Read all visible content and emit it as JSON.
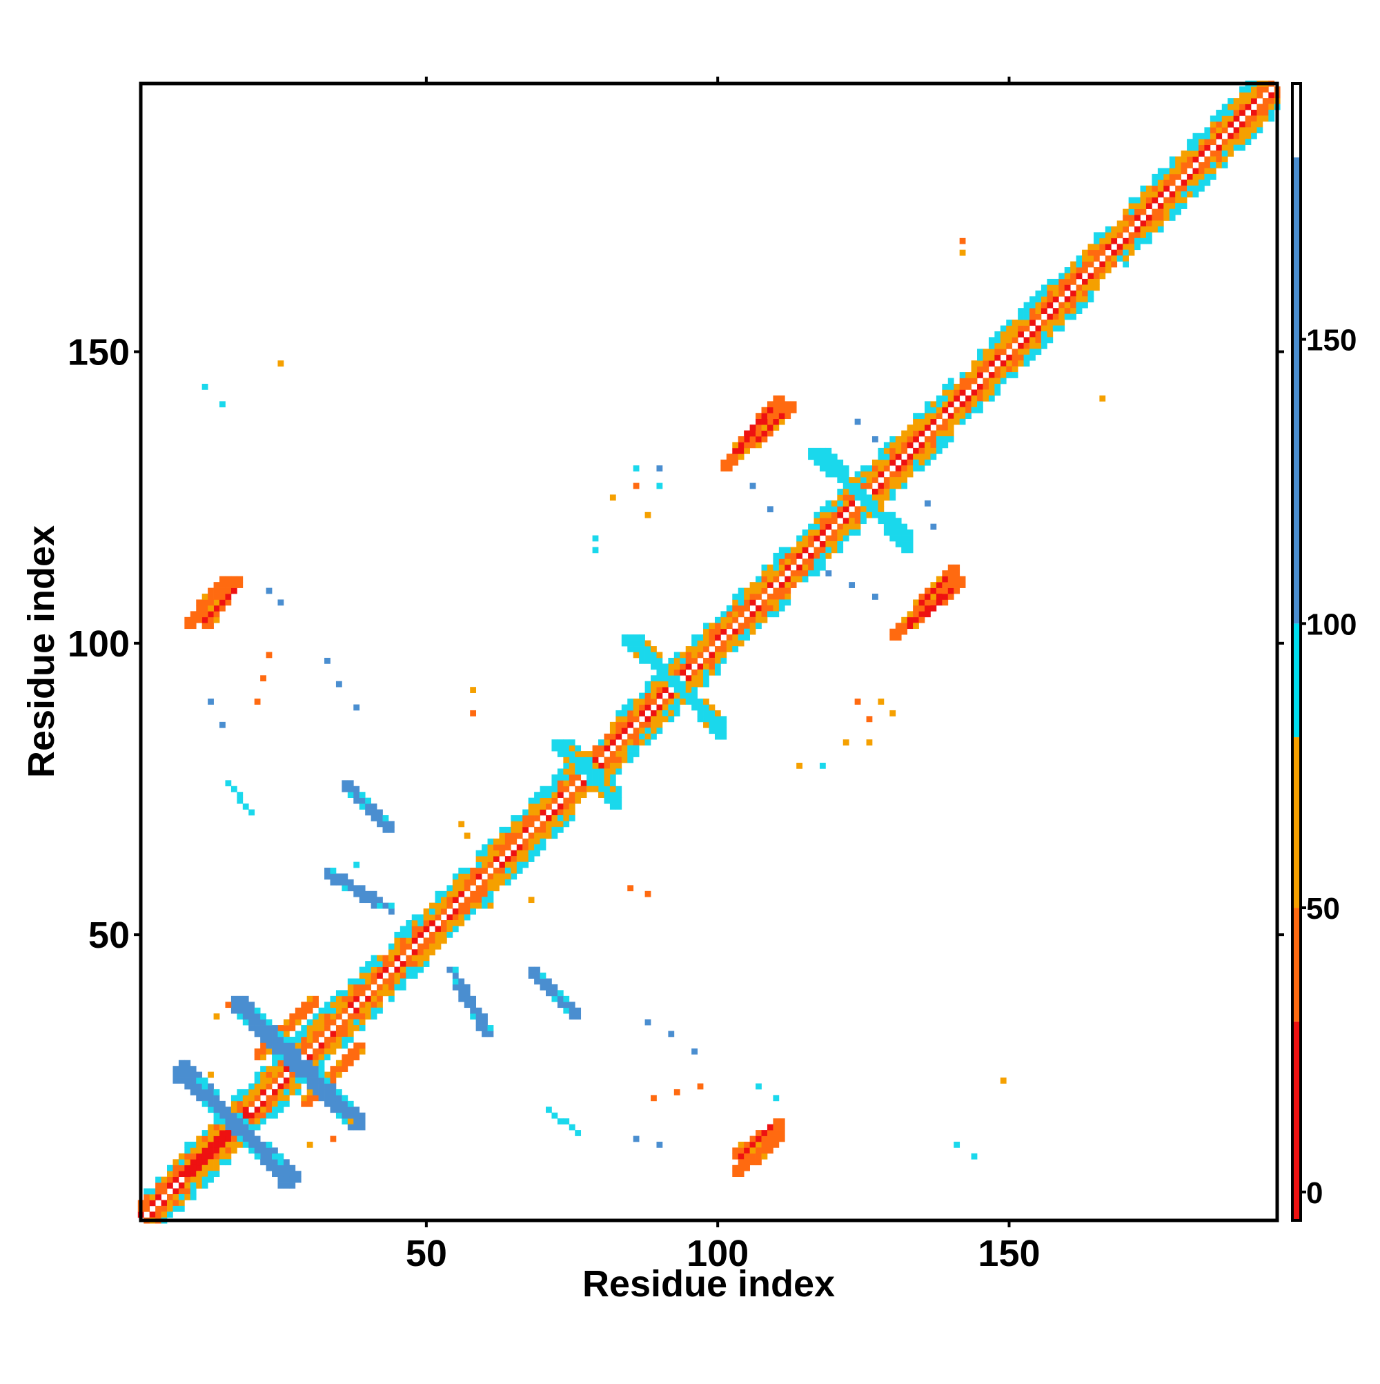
{
  "chart_data": {
    "type": "heatmap",
    "title": "",
    "xlabel": "Residue index",
    "ylabel": "Residue index",
    "xlim": [
      1,
      196
    ],
    "ylim": [
      1,
      196
    ],
    "x_ticks": [
      50,
      100,
      150
    ],
    "y_ticks": [
      50,
      100,
      150
    ],
    "grid": false,
    "colorbar": {
      "position": "right",
      "range": [
        -5,
        195
      ],
      "ticks": [
        0,
        50,
        100,
        150
      ],
      "bands": [
        {
          "from": -5,
          "to": 30,
          "color": "#ee1111"
        },
        {
          "from": 30,
          "to": 50,
          "color": "#ff6a10"
        },
        {
          "from": 50,
          "to": 80,
          "color": "#f5a000"
        },
        {
          "from": 80,
          "to": 100,
          "color": "#00e0f0"
        },
        {
          "from": 100,
          "to": 182,
          "color": "#4a8ed0"
        },
        {
          "from": 182,
          "to": 195,
          "color": "#ffffff"
        }
      ]
    },
    "palette": {
      "red": "#ee1111",
      "orange_red": "#ff6a10",
      "orange": "#f5a000",
      "cyan": "#1ad8ec",
      "steel_blue": "#4a8ed0"
    },
    "diagonal": {
      "from": 1,
      "to": 196,
      "helix_core_segments": [
        [
          7,
          18
        ],
        [
          20,
          42
        ],
        [
          44,
          56
        ],
        [
          59,
          75
        ],
        [
          82,
          100
        ],
        [
          103,
          112
        ],
        [
          117,
          140
        ],
        [
          144,
          165
        ],
        [
          170,
          196
        ]
      ]
    },
    "patches": [
      {
        "x": [
          10,
          18
        ],
        "y": [
          10,
          18
        ],
        "offset": 0,
        "width": 1.2,
        "color": "red"
      },
      {
        "x": [
          22,
          30
        ],
        "y": [
          30,
          38
        ],
        "offset": 0,
        "width": 1.2,
        "color": "orange_red"
      },
      {
        "x": [
          9,
          18
        ],
        "y": [
          16,
          27
        ],
        "anti": true,
        "width": 2.2,
        "color": "steel_blue"
      },
      {
        "x": [
          18,
          26
        ],
        "y": [
          8,
          17
        ],
        "anti": true,
        "width": 2.2,
        "color": "steel_blue"
      },
      {
        "x": [
          18,
          27
        ],
        "y": [
          28,
          38
        ],
        "anti": true,
        "width": 2.0,
        "color": "steel_blue"
      },
      {
        "x": [
          29,
          38
        ],
        "y": [
          18,
          27
        ],
        "anti": true,
        "width": 2.0,
        "color": "steel_blue"
      },
      {
        "x": [
          13,
          17
        ],
        "y": [
          104,
          110
        ],
        "offset": 0,
        "width": 1.6,
        "color": "orange_red"
      },
      {
        "x": [
          13,
          16
        ],
        "y": [
          105,
          108
        ],
        "offset": 0,
        "width": 0.8,
        "color": "red"
      },
      {
        "x": [
          37,
          41
        ],
        "y": [
          71,
          75
        ],
        "anti": true,
        "width": 1.4,
        "color": "steel_blue"
      },
      {
        "x": [
          34,
          41
        ],
        "y": [
          56,
          60
        ],
        "anti": true,
        "width": 1.2,
        "color": "steel_blue"
      },
      {
        "x": [
          55,
          58
        ],
        "y": [
          38,
          43
        ],
        "anti": true,
        "width": 1.0,
        "color": "steel_blue"
      },
      {
        "x": [
          69,
          74
        ],
        "y": [
          38,
          43
        ],
        "anti": true,
        "width": 1.2,
        "color": "steel_blue"
      },
      {
        "x": [
          75,
          82
        ],
        "y": [
          73,
          82
        ],
        "anti": true,
        "width": 2.2,
        "color": "cyan"
      },
      {
        "x": [
          87,
          100
        ],
        "y": [
          85,
          100
        ],
        "anti": true,
        "width": 1.6,
        "color": "cyan"
      },
      {
        "x": [
          119,
          132
        ],
        "y": [
          117,
          132
        ],
        "anti": true,
        "width": 1.6,
        "color": "cyan"
      },
      {
        "x": [
          102,
          112
        ],
        "y": [
          131,
          140
        ],
        "offset": 0,
        "width": 1.5,
        "color": "orange_red"
      },
      {
        "x": [
          105,
          110
        ],
        "y": [
          134,
          138
        ],
        "offset": 0,
        "width": 0.8,
        "color": "red"
      },
      {
        "x": [
          131,
          141
        ],
        "y": [
          102,
          110
        ],
        "offset": 0,
        "width": 1.5,
        "color": "orange_red"
      },
      {
        "x": [
          134,
          139
        ],
        "y": [
          104,
          108
        ],
        "offset": 0,
        "width": 0.8,
        "color": "red"
      },
      {
        "x": [
          104,
          110
        ],
        "y": [
          10,
          15
        ],
        "offset": 0,
        "width": 1.6,
        "color": "orange_red"
      },
      {
        "x": [
          72,
          75
        ],
        "y": [
          17,
          19
        ],
        "anti": true,
        "width": 0.6,
        "color": "cyan"
      }
    ],
    "specks": [
      [
        25,
        148,
        "orange"
      ],
      [
        12,
        144,
        "cyan"
      ],
      [
        15,
        141,
        "cyan"
      ],
      [
        23,
        109,
        "steel_blue"
      ],
      [
        25,
        107,
        "steel_blue"
      ],
      [
        23,
        98,
        "orange_red"
      ],
      [
        22,
        94,
        "orange_red"
      ],
      [
        21,
        90,
        "orange_red"
      ],
      [
        13,
        90,
        "steel_blue"
      ],
      [
        15,
        86,
        "steel_blue"
      ],
      [
        33,
        97,
        "steel_blue"
      ],
      [
        35,
        93,
        "steel_blue"
      ],
      [
        38,
        89,
        "steel_blue"
      ],
      [
        18,
        73,
        "cyan"
      ],
      [
        38,
        62,
        "cyan"
      ],
      [
        58,
        92,
        "orange"
      ],
      [
        58,
        88,
        "orange_red"
      ],
      [
        56,
        69,
        "orange"
      ],
      [
        57,
        67,
        "orange"
      ],
      [
        61,
        55,
        "orange"
      ],
      [
        68,
        56,
        "orange"
      ],
      [
        85,
        58,
        "orange_red"
      ],
      [
        88,
        57,
        "orange_red"
      ],
      [
        79,
        118,
        "cyan"
      ],
      [
        79,
        116,
        "cyan"
      ],
      [
        82,
        125,
        "orange"
      ],
      [
        86,
        127,
        "orange_red"
      ],
      [
        86,
        130,
        "cyan"
      ],
      [
        90,
        127,
        "cyan"
      ],
      [
        88,
        122,
        "orange"
      ],
      [
        90,
        130,
        "steel_blue"
      ],
      [
        106,
        127,
        "steel_blue"
      ],
      [
        109,
        123,
        "steel_blue"
      ],
      [
        124,
        138,
        "steel_blue"
      ],
      [
        127,
        135,
        "steel_blue"
      ],
      [
        136,
        124,
        "steel_blue"
      ],
      [
        137,
        120,
        "steel_blue"
      ],
      [
        119,
        112,
        "steel_blue"
      ],
      [
        123,
        110,
        "steel_blue"
      ],
      [
        127,
        108,
        "steel_blue"
      ],
      [
        142,
        169,
        "orange_red"
      ],
      [
        142,
        167,
        "orange"
      ],
      [
        166,
        142,
        "orange"
      ],
      [
        124,
        90,
        "orange_red"
      ],
      [
        126,
        87,
        "orange_red"
      ],
      [
        128,
        90,
        "orange"
      ],
      [
        130,
        88,
        "orange"
      ],
      [
        122,
        83,
        "orange"
      ],
      [
        126,
        83,
        "orange"
      ],
      [
        114,
        79,
        "orange"
      ],
      [
        118,
        79,
        "cyan"
      ],
      [
        88,
        35,
        "steel_blue"
      ],
      [
        92,
        33,
        "steel_blue"
      ],
      [
        96,
        30,
        "steel_blue"
      ],
      [
        89,
        22,
        "orange_red"
      ],
      [
        93,
        23,
        "orange_red"
      ],
      [
        97,
        24,
        "orange_red"
      ],
      [
        86,
        15,
        "steel_blue"
      ],
      [
        90,
        14,
        "steel_blue"
      ],
      [
        107,
        24,
        "cyan"
      ],
      [
        110,
        22,
        "cyan"
      ],
      [
        149,
        25,
        "orange"
      ],
      [
        141,
        14,
        "cyan"
      ],
      [
        144,
        12,
        "cyan"
      ],
      [
        30,
        14,
        "orange"
      ],
      [
        34,
        15,
        "orange_red"
      ],
      [
        37,
        18,
        "orange"
      ],
      [
        14,
        36,
        "orange"
      ],
      [
        16,
        38,
        "orange_red"
      ],
      [
        13,
        26,
        "orange"
      ]
    ]
  }
}
